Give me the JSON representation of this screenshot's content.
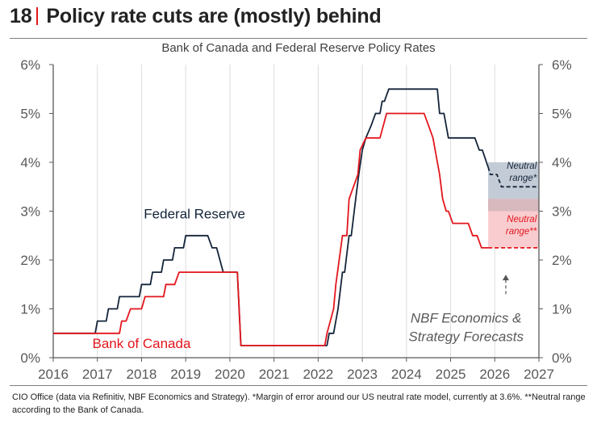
{
  "header": {
    "number": "18",
    "title": "Policy rate cuts are (mostly) behind"
  },
  "footnote": "CIO Office (data via Refinitiv, NBF Economics and Strategy). *Margin of error around our US neutral rate model, currently at 3.6%. **Neutral range according to the Bank of Canada.",
  "colors": {
    "fed": "#14243a",
    "boc": "#e3161d",
    "fed_band": "#c3ccd6",
    "boc_band": "#f9cdd0",
    "overlap_band": "#d7b9be",
    "axis_text": "#595959"
  },
  "chart_data": {
    "type": "line",
    "title": "Bank of Canada and Federal Reserve Policy Rates",
    "xlabel": "",
    "ylabel": "",
    "xlim": [
      2016,
      2027
    ],
    "ylim": [
      0,
      6
    ],
    "x_ticks": [
      "2016",
      "2017",
      "2018",
      "2019",
      "2020",
      "2021",
      "2022",
      "2023",
      "2024",
      "2025",
      "2026",
      "2027"
    ],
    "y_ticks_left": [
      "0%",
      "1%",
      "2%",
      "3%",
      "4%",
      "5%",
      "6%"
    ],
    "y_ticks_right": [
      "0%",
      "1%",
      "2%",
      "3%",
      "4%",
      "5%",
      "6%"
    ],
    "grid": "vertical",
    "series": [
      {
        "name": "Federal Reserve",
        "style": "solid",
        "points": [
          [
            2016.0,
            0.5
          ],
          [
            2016.95,
            0.5
          ],
          [
            2017.0,
            0.75
          ],
          [
            2017.2,
            0.75
          ],
          [
            2017.25,
            1.0
          ],
          [
            2017.45,
            1.0
          ],
          [
            2017.5,
            1.25
          ],
          [
            2017.95,
            1.25
          ],
          [
            2018.0,
            1.5
          ],
          [
            2018.2,
            1.5
          ],
          [
            2018.25,
            1.75
          ],
          [
            2018.45,
            1.75
          ],
          [
            2018.5,
            2.0
          ],
          [
            2018.7,
            2.0
          ],
          [
            2018.75,
            2.25
          ],
          [
            2018.95,
            2.25
          ],
          [
            2019.0,
            2.5
          ],
          [
            2019.5,
            2.5
          ],
          [
            2019.6,
            2.25
          ],
          [
            2019.7,
            2.25
          ],
          [
            2019.85,
            1.75
          ],
          [
            2020.17,
            1.75
          ],
          [
            2020.25,
            0.25
          ],
          [
            2022.2,
            0.25
          ],
          [
            2022.25,
            0.5
          ],
          [
            2022.35,
            0.5
          ],
          [
            2022.45,
            1.0
          ],
          [
            2022.55,
            1.75
          ],
          [
            2022.6,
            1.75
          ],
          [
            2022.7,
            2.5
          ],
          [
            2022.75,
            2.5
          ],
          [
            2022.85,
            3.25
          ],
          [
            2022.92,
            3.75
          ],
          [
            2023.0,
            4.25
          ],
          [
            2023.08,
            4.5
          ],
          [
            2023.2,
            4.75
          ],
          [
            2023.3,
            5.0
          ],
          [
            2023.4,
            5.0
          ],
          [
            2023.45,
            5.25
          ],
          [
            2023.5,
            5.25
          ],
          [
            2023.6,
            5.5
          ],
          [
            2024.7,
            5.5
          ],
          [
            2024.75,
            5.0
          ],
          [
            2024.85,
            5.0
          ],
          [
            2024.95,
            4.5
          ],
          [
            2025.55,
            4.5
          ],
          [
            2025.65,
            4.25
          ],
          [
            2025.72,
            4.25
          ],
          [
            2025.85,
            3.9
          ]
        ]
      },
      {
        "name": "Federal Reserve (forecast)",
        "style": "dashed",
        "points": [
          [
            2025.85,
            3.9
          ],
          [
            2025.9,
            3.75
          ],
          [
            2026.05,
            3.75
          ],
          [
            2026.15,
            3.5
          ],
          [
            2027.0,
            3.5
          ]
        ]
      },
      {
        "name": "Bank of Canada",
        "style": "solid",
        "points": [
          [
            2016.0,
            0.5
          ],
          [
            2017.5,
            0.5
          ],
          [
            2017.55,
            0.75
          ],
          [
            2017.65,
            0.75
          ],
          [
            2017.75,
            1.0
          ],
          [
            2018.0,
            1.0
          ],
          [
            2018.08,
            1.25
          ],
          [
            2018.5,
            1.25
          ],
          [
            2018.55,
            1.5
          ],
          [
            2018.75,
            1.5
          ],
          [
            2018.85,
            1.75
          ],
          [
            2020.17,
            1.75
          ],
          [
            2020.25,
            0.25
          ],
          [
            2022.15,
            0.25
          ],
          [
            2022.2,
            0.5
          ],
          [
            2022.35,
            1.0
          ],
          [
            2022.4,
            1.5
          ],
          [
            2022.55,
            2.5
          ],
          [
            2022.65,
            2.5
          ],
          [
            2022.7,
            3.25
          ],
          [
            2022.9,
            3.75
          ],
          [
            2022.95,
            4.25
          ],
          [
            2023.08,
            4.5
          ],
          [
            2023.4,
            4.5
          ],
          [
            2023.55,
            5.0
          ],
          [
            2024.4,
            5.0
          ],
          [
            2024.5,
            4.75
          ],
          [
            2024.6,
            4.5
          ],
          [
            2024.65,
            4.25
          ],
          [
            2024.75,
            3.75
          ],
          [
            2024.82,
            3.25
          ],
          [
            2024.9,
            3.0
          ],
          [
            2024.95,
            3.0
          ],
          [
            2025.05,
            2.75
          ],
          [
            2025.4,
            2.75
          ],
          [
            2025.5,
            2.5
          ],
          [
            2025.6,
            2.5
          ],
          [
            2025.7,
            2.25
          ],
          [
            2025.85,
            2.25
          ]
        ]
      },
      {
        "name": "Bank of Canada (forecast)",
        "style": "dashed",
        "points": [
          [
            2025.85,
            2.25
          ],
          [
            2027.0,
            2.25
          ]
        ]
      }
    ],
    "bands": [
      {
        "name": "Fed neutral range*",
        "x_start": 2025.85,
        "x_end": 2027.0,
        "y_low": 3.0,
        "y_high": 4.0
      },
      {
        "name": "BoC neutral range**",
        "x_start": 2025.85,
        "x_end": 2027.0,
        "y_low": 2.25,
        "y_high": 3.25
      }
    ],
    "annotations": [
      {
        "text": "Federal Reserve",
        "x": 2019.2,
        "y": 2.85,
        "color": "fed"
      },
      {
        "text": "Bank of Canada",
        "x": 2018.0,
        "y": 0.2,
        "color": "boc"
      },
      {
        "text": "Neutral",
        "x": 2026.95,
        "y": 3.87,
        "color": "fed",
        "italic": true
      },
      {
        "text": "range*",
        "x": 2026.95,
        "y": 3.62,
        "color": "fed",
        "italic": true
      },
      {
        "text": "Neutral",
        "x": 2026.95,
        "y": 2.78,
        "color": "boc",
        "italic": true
      },
      {
        "text": "range**",
        "x": 2026.95,
        "y": 2.53,
        "color": "boc",
        "italic": true
      },
      {
        "text": "NBF Economics &",
        "x": 2025.35,
        "y": 0.72,
        "color": "axis",
        "italic": true
      },
      {
        "text": "Strategy Forecasts",
        "x": 2025.35,
        "y": 0.34,
        "color": "axis",
        "italic": true
      }
    ],
    "forecast_arrow": {
      "x": 2026.25,
      "y_from": 1.3,
      "y_to": 1.7
    }
  }
}
